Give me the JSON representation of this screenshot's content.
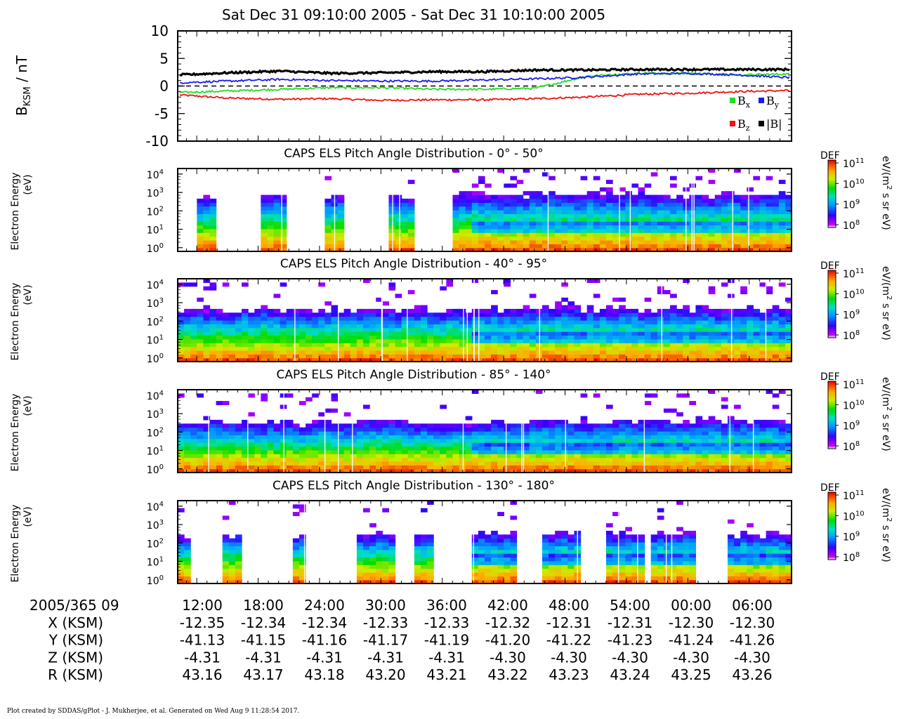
{
  "title": "Sat Dec 31 09:10:00 2005 - Sat Dec 31 10:10:00 2005",
  "footer": "Plot created by SDDAS/gPlot - J. Mukherjee, et al.  Generated on Wed Aug 9 11:28:54 2017.",
  "time_axis": {
    "start_label": "2005/365 09",
    "ticks": [
      "12:00",
      "18:00",
      "24:00",
      "30:00",
      "36:00",
      "42:00",
      "48:00",
      "54:00",
      "00:00",
      "06:00"
    ]
  },
  "ephemeris": [
    {
      "label": "X (KSM)",
      "values": [
        "-12.35",
        "-12.34",
        "-12.34",
        "-12.33",
        "-12.33",
        "-12.32",
        "-12.31",
        "-12.31",
        "-12.30",
        "-12.30"
      ]
    },
    {
      "label": "Y (KSM)",
      "values": [
        "-41.13",
        "-41.15",
        "-41.16",
        "-41.17",
        "-41.19",
        "-41.20",
        "-41.22",
        "-41.23",
        "-41.24",
        "-41.26"
      ]
    },
    {
      "label": "Z (KSM)",
      "values": [
        "-4.31",
        "-4.31",
        "-4.31",
        "-4.31",
        "-4.31",
        "-4.30",
        "-4.30",
        "-4.30",
        "-4.30",
        "-4.30"
      ]
    },
    {
      "label": "R (KSM)",
      "values": [
        "43.16",
        "43.17",
        "43.18",
        "43.20",
        "43.21",
        "43.22",
        "43.23",
        "43.24",
        "43.25",
        "43.26"
      ]
    }
  ],
  "colors": {
    "Bx": "#22dd22",
    "By": "#1a1aee",
    "Bz": "#ee1111",
    "B": "#000000"
  },
  "chart_data": [
    {
      "type": "line",
      "ylabel_main": "B",
      "ylabel_sub": "KSM",
      "ylabel_unit": " / nT",
      "ylim": [
        -10,
        10
      ],
      "yticks": [
        "10",
        "5",
        "0",
        "-5",
        "-10"
      ],
      "x_range_minutes": [
        9.167,
        10.167
      ],
      "legend": [
        "Bx",
        "By",
        "Bz",
        "|B|"
      ],
      "series": [
        {
          "name": "Bx",
          "x": [
            0,
            5,
            10,
            15,
            20,
            25,
            30,
            35,
            40,
            45,
            50,
            55,
            60
          ],
          "values": [
            -1.2,
            -0.9,
            -0.6,
            -0.3,
            -0.3,
            -0.6,
            -0.6,
            -0.4,
            1.8,
            2.3,
            2.3,
            2.0,
            2.2
          ]
        },
        {
          "name": "By",
          "x": [
            0,
            5,
            10,
            15,
            20,
            25,
            30,
            35,
            40,
            45,
            50,
            55,
            60
          ],
          "values": [
            0.6,
            0.9,
            1.2,
            1.0,
            0.9,
            0.9,
            1.1,
            1.3,
            1.6,
            2.2,
            2.3,
            2.0,
            1.5
          ]
        },
        {
          "name": "Bz",
          "x": [
            0,
            5,
            10,
            15,
            20,
            25,
            30,
            35,
            40,
            45,
            50,
            55,
            60
          ],
          "values": [
            -1.6,
            -2.2,
            -2.4,
            -2.3,
            -2.6,
            -2.5,
            -2.5,
            -2.3,
            -2.0,
            -1.5,
            -1.3,
            -1.0,
            -0.8
          ]
        },
        {
          "name": "|B|",
          "x": [
            0,
            5,
            10,
            15,
            20,
            25,
            30,
            35,
            40,
            45,
            50,
            55,
            60
          ],
          "values": [
            2.0,
            2.4,
            2.7,
            2.3,
            2.4,
            2.6,
            2.6,
            2.9,
            2.9,
            3.0,
            3.0,
            3.0,
            3.0
          ]
        }
      ]
    },
    {
      "type": "heatmap",
      "title": "CAPS ELS Pitch Angle Distribution - 0° - 50°",
      "ylabel": "Electron Energy",
      "ylabel_unit": "(eV)",
      "yticks": [
        "10",
        "10",
        "10",
        "10",
        "10"
      ],
      "ytick_exps": [
        "4",
        "3",
        "2",
        "1",
        "0"
      ],
      "colorbar": {
        "label": "DEF",
        "unit": "eV/(m",
        "unit_sup": "2",
        "unit_rest": " s sr eV)",
        "ticks": [
          "10",
          "10",
          "10",
          "10"
        ],
        "tick_exps": [
          "11",
          "10",
          "9",
          "8"
        ]
      },
      "coverage": [
        [
          3,
          6
        ],
        [
          13,
          16.5
        ],
        [
          23,
          26
        ],
        [
          33,
          36.5
        ],
        [
          43,
          96
        ]
      ],
      "max_energy_log": 2.8
    },
    {
      "type": "heatmap",
      "title": "CAPS ELS Pitch Angle Distribution - 40° - 95°",
      "ylabel": "Electron Energy",
      "ylabel_unit": "(eV)",
      "yticks": [
        "10",
        "10",
        "10",
        "10",
        "10"
      ],
      "ytick_exps": [
        "4",
        "3",
        "2",
        "1",
        "0"
      ],
      "colorbar": {
        "label": "DEF",
        "unit": "eV/(m",
        "unit_sup": "2",
        "unit_rest": " s sr eV)",
        "ticks": [
          "10",
          "10",
          "10",
          "10"
        ],
        "tick_exps": [
          "11",
          "10",
          "9",
          "8"
        ]
      },
      "coverage": [
        [
          0,
          96
        ]
      ],
      "max_energy_log": 2.6
    },
    {
      "type": "heatmap",
      "title": "CAPS ELS Pitch Angle Distribution - 85° - 140°",
      "ylabel": "Electron Energy",
      "ylabel_unit": "(eV)",
      "yticks": [
        "10",
        "10",
        "10",
        "10",
        "10"
      ],
      "ytick_exps": [
        "4",
        "3",
        "2",
        "1",
        "0"
      ],
      "colorbar": {
        "label": "DEF",
        "unit": "eV/(m",
        "unit_sup": "2",
        "unit_rest": " s sr eV)",
        "ticks": [
          "10",
          "10",
          "10",
          "10"
        ],
        "tick_exps": [
          "11",
          "10",
          "9",
          "8"
        ]
      },
      "coverage": [
        [
          0,
          96
        ]
      ],
      "max_energy_log": 2.5
    },
    {
      "type": "heatmap",
      "title": "CAPS ELS Pitch Angle Distribution - 130° - 180°",
      "ylabel": "Electron Energy",
      "ylabel_unit": "(eV)",
      "yticks": [
        "10",
        "10",
        "10",
        "10",
        "10"
      ],
      "ytick_exps": [
        "4",
        "3",
        "2",
        "1",
        "0"
      ],
      "colorbar": {
        "label": "DEF",
        "unit": "eV/(m",
        "unit_sup": "2",
        "unit_rest": " s sr eV)",
        "ticks": [
          "10",
          "10",
          "10",
          "10"
        ],
        "tick_exps": [
          "11",
          "10",
          "9",
          "8"
        ]
      },
      "coverage": [
        [
          0,
          1.5
        ],
        [
          7,
          9.5
        ],
        [
          17.5,
          20
        ],
        [
          27.5,
          34
        ],
        [
          37,
          40
        ],
        [
          46,
          53
        ],
        [
          53.5,
          54
        ],
        [
          56.5,
          63
        ],
        [
          66.5,
          73
        ],
        [
          73.5,
          81
        ],
        [
          85.5,
          96
        ]
      ],
      "max_energy_log": 2.4
    }
  ]
}
